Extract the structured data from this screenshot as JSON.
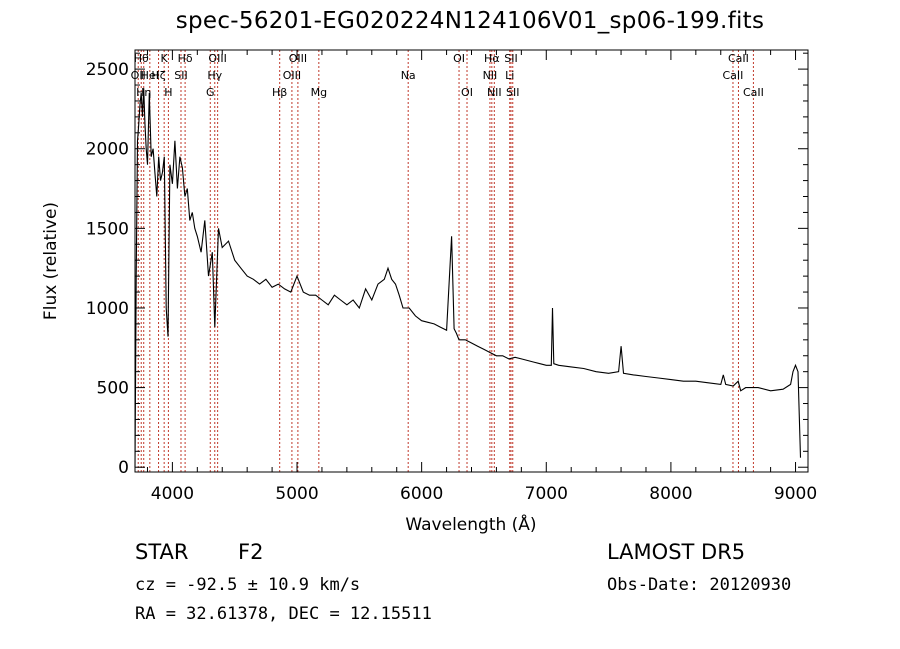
{
  "title": "spec-56201-EG020224N124106V01_sp06-199.fits",
  "object_class": "STAR",
  "subclass": "F2",
  "survey": "LAMOST DR5",
  "cz": "cz = -92.5 ± 10.9 km/s",
  "obs_date": "Obs-Date: 20120930",
  "coords": "RA =  32.61378, DEC =  12.15511",
  "chart_data": {
    "type": "line",
    "xlabel": "Wavelength (Å)",
    "ylabel": "Flux (relative)",
    "xlim": [
      3700,
      9100
    ],
    "ylim": [
      -30,
      2620
    ],
    "xticks": [
      4000,
      5000,
      6000,
      7000,
      8000,
      9000
    ],
    "yticks": [
      0,
      500,
      1000,
      1500,
      2000,
      2500
    ],
    "line_color": "#000000",
    "marker_color": "#c0392b",
    "series": [
      {
        "x": [
          3700,
          3710,
          3720,
          3730,
          3740,
          3750,
          3760,
          3770,
          3780,
          3790,
          3800,
          3815,
          3830,
          3845,
          3860,
          3875,
          3890,
          3905,
          3920,
          3935,
          3950,
          3965,
          3980,
          4000,
          4020,
          4040,
          4060,
          4080,
          4100,
          4120,
          4140,
          4160,
          4180,
          4200,
          4230,
          4260,
          4290,
          4320,
          4340,
          4370,
          4400,
          4450,
          4500,
          4550,
          4600,
          4650,
          4700,
          4750,
          4800,
          4850,
          4900,
          4950,
          5000,
          5050,
          5100,
          5150,
          5200,
          5250,
          5300,
          5350,
          5400,
          5450,
          5500,
          5550,
          5600,
          5650,
          5700,
          5730,
          5760,
          5790,
          5820,
          5850,
          5900,
          5950,
          6000,
          6050,
          6100,
          6150,
          6200,
          6240,
          6260,
          6280,
          6300,
          6350,
          6400,
          6450,
          6500,
          6550,
          6600,
          6650,
          6700,
          6750,
          6800,
          6850,
          6900,
          6950,
          7000,
          7040,
          7050,
          7060,
          7100,
          7200,
          7300,
          7400,
          7500,
          7580,
          7600,
          7620,
          7700,
          7800,
          7900,
          8000,
          8100,
          8200,
          8300,
          8400,
          8420,
          8440,
          8500,
          8540,
          8560,
          8600,
          8700,
          8800,
          8900,
          8960,
          8980,
          9000,
          9020,
          9040
        ],
        "y": [
          0,
          1200,
          2050,
          2150,
          2280,
          2350,
          2200,
          2380,
          2150,
          2000,
          1900,
          2350,
          1950,
          2000,
          1850,
          1700,
          1950,
          1800,
          1850,
          1950,
          1000,
          820,
          1900,
          1780,
          2050,
          1750,
          1950,
          1880,
          1700,
          1750,
          1550,
          1600,
          1500,
          1450,
          1350,
          1550,
          1200,
          1350,
          880,
          1500,
          1380,
          1420,
          1300,
          1250,
          1200,
          1180,
          1150,
          1180,
          1130,
          1150,
          1120,
          1100,
          1200,
          1100,
          1080,
          1080,
          1050,
          1020,
          1080,
          1050,
          1020,
          1050,
          1000,
          1120,
          1050,
          1150,
          1180,
          1250,
          1180,
          1150,
          1080,
          1000,
          1000,
          950,
          920,
          910,
          900,
          880,
          860,
          1450,
          870,
          840,
          800,
          800,
          780,
          760,
          740,
          720,
          700,
          700,
          680,
          690,
          680,
          670,
          660,
          650,
          640,
          640,
          1000,
          650,
          640,
          630,
          620,
          600,
          590,
          600,
          760,
          590,
          580,
          570,
          560,
          550,
          540,
          540,
          530,
          520,
          580,
          520,
          510,
          540,
          480,
          500,
          500,
          480,
          490,
          520,
          600,
          640,
          600,
          60
        ]
      }
    ],
    "line_markers": [
      {
        "x": 3726,
        "label": "OII",
        "row": 1
      },
      {
        "x": 3750,
        "label": "Hθ",
        "row": 0
      },
      {
        "x": 3770,
        "label": "Hη",
        "row": 2
      },
      {
        "x": 3819,
        "label": "HeI",
        "row": 1
      },
      {
        "x": 3889,
        "label": "Hζ",
        "row": 1
      },
      {
        "x": 3934,
        "label": "K",
        "row": 0
      },
      {
        "x": 3968,
        "label": "H",
        "row": 2
      },
      {
        "x": 4069,
        "label": "SII",
        "row": 1
      },
      {
        "x": 4102,
        "label": "Hδ",
        "row": 0
      },
      {
        "x": 4304,
        "label": "G",
        "row": 2
      },
      {
        "x": 4340,
        "label": "Hγ",
        "row": 1
      },
      {
        "x": 4363,
        "label": "OIII",
        "row": 0
      },
      {
        "x": 4861,
        "label": "Hβ",
        "row": 2
      },
      {
        "x": 4959,
        "label": "OIII",
        "row": 1
      },
      {
        "x": 5007,
        "label": "OIII",
        "row": 0
      },
      {
        "x": 5175,
        "label": "Mg",
        "row": 2
      },
      {
        "x": 5892,
        "label": "Na",
        "row": 1
      },
      {
        "x": 6300,
        "label": "OI",
        "row": 0
      },
      {
        "x": 6364,
        "label": "OI",
        "row": 2
      },
      {
        "x": 6548,
        "label": "NII",
        "row": 1
      },
      {
        "x": 6563,
        "label": "Hα",
        "row": 0
      },
      {
        "x": 6583,
        "label": "NII",
        "row": 2
      },
      {
        "x": 6707,
        "label": "Li",
        "row": 1
      },
      {
        "x": 6717,
        "label": "SII",
        "row": 0
      },
      {
        "x": 6731,
        "label": "SII",
        "row": 2
      },
      {
        "x": 8498,
        "label": "CaII",
        "row": 1
      },
      {
        "x": 8542,
        "label": "CaII",
        "row": 0
      },
      {
        "x": 8662,
        "label": "CaII",
        "row": 2
      }
    ]
  }
}
